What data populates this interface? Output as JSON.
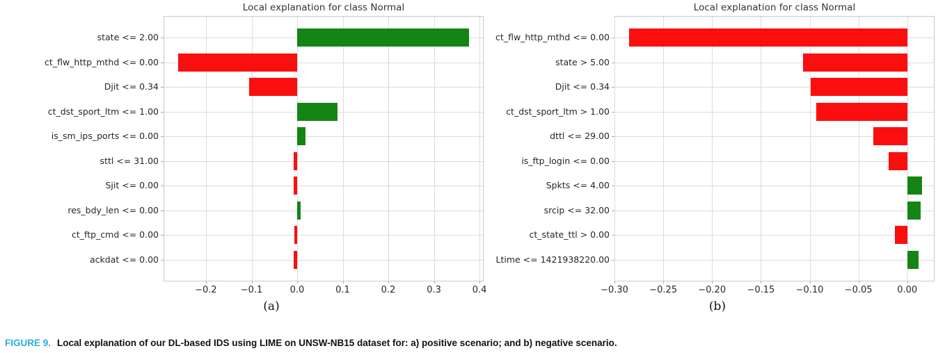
{
  "figure_caption": {
    "label": "FIGURE 9.",
    "text": "Local explanation of our DL-based IDS using LIME on UNSW-NB15 dataset for: a) positive scenario; and b) negative scenario."
  },
  "colors": {
    "positive_bar": "#148414",
    "negative_bar": "#fb0e0e",
    "grid": "#dcdcdc",
    "spine": "#c8c8c8",
    "tick": "#aaaaaa",
    "title_text": "#333333",
    "axis_text": "#262626",
    "caption_label": "#29abe2",
    "caption_text": "#111111"
  },
  "chart_data": [
    {
      "id": "a",
      "type": "bar",
      "orientation": "horizontal",
      "title": "Local explanation for class Normal",
      "sublabel": "(a)",
      "grid": true,
      "legend": "none",
      "categories": [
        "state <= 2.00",
        "ct_flw_http_mthd <= 0.00",
        "Djit <= 0.34",
        "ct_dst_sport_ltm <= 1.00",
        "is_sm_ips_ports <= 0.00",
        "sttl <= 31.00",
        "Sjit <= 0.00",
        "res_bdy_len <= 0.00",
        "ct_ftp_cmd <= 0.00",
        "ackdat <= 0.00"
      ],
      "values": [
        0.377,
        -0.261,
        -0.105,
        0.088,
        0.018,
        -0.008,
        -0.007,
        0.007,
        -0.006,
        -0.007
      ],
      "color_rule": "green-positive-red-negative",
      "xlim": [
        -0.293,
        0.409
      ],
      "xticks": [
        -0.2,
        -0.1,
        0.0,
        0.1,
        0.2,
        0.3,
        0.4
      ],
      "xtick_labels": [
        "−0.2",
        "−0.1",
        "0.0",
        "0.1",
        "0.2",
        "0.3",
        "0.4"
      ]
    },
    {
      "id": "b",
      "type": "bar",
      "orientation": "horizontal",
      "title": "Local explanation for class Normal",
      "sublabel": "(b)",
      "grid": true,
      "legend": "none",
      "categories": [
        "ct_flw_http_mthd <= 0.00",
        "state > 5.00",
        "Djit <= 0.34",
        "ct_dst_sport_ltm > 1.00",
        "dttl <= 29.00",
        "is_ftp_login <= 0.00",
        "Spkts <= 4.00",
        "srcip <= 32.00",
        "ct_state_ttl > 0.00",
        "Ltime <= 1421938220.00"
      ],
      "values": [
        -0.285,
        -0.107,
        -0.099,
        -0.093,
        -0.035,
        -0.019,
        0.015,
        0.014,
        -0.013,
        0.012
      ],
      "color_rule": "green-positive-red-negative",
      "xlim": [
        -0.3,
        0.028
      ],
      "xticks": [
        -0.3,
        -0.25,
        -0.2,
        -0.15,
        -0.1,
        -0.05,
        0.0
      ],
      "xtick_labels": [
        "−0.30",
        "−0.25",
        "−0.20",
        "−0.15",
        "−0.10",
        "−0.05",
        "0.00"
      ]
    }
  ]
}
